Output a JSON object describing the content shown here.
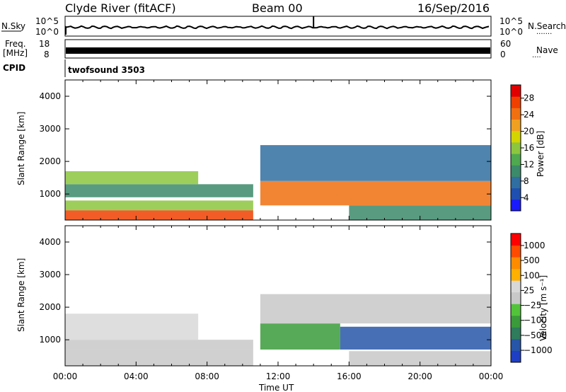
{
  "header": {
    "station": "Clyde River (fitACF)",
    "beam": "Beam 00",
    "date": "16/Sep/2016"
  },
  "panels": {
    "nsky_label": "N.Sky",
    "nsearch_label": "N.Search",
    "nsearch_dots": "·······",
    "freq_label_1": "Freq.",
    "freq_label_2": "[MHz]",
    "nave_label": "Nave",
    "nave_dots": "····",
    "cpid_label": "CPID",
    "cpid_value": "twofsound 3503",
    "nsky_ticks": [
      "10^5",
      "10^0"
    ],
    "nsearch_ticks": [
      "10^5",
      "10^0"
    ],
    "freq_ticks": [
      "18",
      "8"
    ],
    "nave_ticks": [
      "60",
      "0"
    ]
  },
  "colorbars": {
    "power": {
      "label": "Power [dB]",
      "ticks": [
        "28",
        "24",
        "20",
        "16",
        "12",
        "8",
        "4"
      ],
      "colors": [
        "#1a1aff",
        "#1f4fb0",
        "#2f6ea0",
        "#3b8a6a",
        "#4fa94f",
        "#8cc63f",
        "#d4d400",
        "#f0a020",
        "#f07010",
        "#f04000",
        "#e00000"
      ]
    },
    "velocity": {
      "label": "Velocity [m s⁻¹]",
      "ticks": [
        "1000",
        "500",
        "100",
        "25",
        "−25",
        "−100",
        "−500",
        "−1000"
      ],
      "colors": [
        "#ff0000",
        "#ff4a00",
        "#ff8c00",
        "#ffb000",
        "#d8d8d8",
        "#c8c8c8",
        "#52c43a",
        "#3a9b3a",
        "#2e7c5c",
        "#2756a8",
        "#1e3fc4"
      ]
    }
  },
  "chart_data": [
    {
      "type": "heatmap",
      "name": "power",
      "ylabel": "Slant Range [km]",
      "ylim": [
        200,
        4500
      ],
      "yticks": [
        1000,
        2000,
        3000,
        4000
      ],
      "xlim": [
        "00:00",
        "24:00"
      ],
      "xtick_labels": [
        "00:00",
        "04:00",
        "08:00",
        "12:00",
        "16:00",
        "20:00",
        "00:00"
      ],
      "color_scale": "Power [dB]",
      "zrange": [
        0,
        30
      ],
      "regions": [
        {
          "t0": 0.0,
          "t1": 10.6,
          "r0": 200,
          "r1": 500,
          "value": 26
        },
        {
          "t0": 0.0,
          "t1": 10.6,
          "r0": 500,
          "r1": 800,
          "value": 16
        },
        {
          "t0": 0.0,
          "t1": 10.6,
          "r0": 900,
          "r1": 1300,
          "value": 8
        },
        {
          "t0": 0.0,
          "t1": 7.5,
          "r0": 1300,
          "r1": 1700,
          "value": 14
        },
        {
          "t0": 11.0,
          "t1": 24.0,
          "r0": 650,
          "r1": 1400,
          "value": 24
        },
        {
          "t0": 11.0,
          "t1": 24.0,
          "r0": 1400,
          "r1": 2500,
          "value": 6
        },
        {
          "t0": 16.0,
          "t1": 24.0,
          "r0": 200,
          "r1": 650,
          "value": 10
        }
      ]
    },
    {
      "type": "heatmap",
      "name": "velocity",
      "xlabel": "Time UT",
      "ylabel": "Slant Range [km]",
      "ylim": [
        200,
        4500
      ],
      "yticks": [
        1000,
        2000,
        3000,
        4000
      ],
      "xlim": [
        "00:00",
        "24:00"
      ],
      "xtick_labels": [
        "00:00",
        "04:00",
        "08:00",
        "12:00",
        "16:00",
        "20:00",
        "00:00"
      ],
      "color_scale": "Velocity [m s⁻¹]",
      "zrange": [
        -1000,
        1000
      ],
      "regions": [
        {
          "t0": 0.0,
          "t1": 10.6,
          "r0": 200,
          "r1": 700,
          "value": 60
        },
        {
          "t0": 0.0,
          "t1": 10.6,
          "r0": 700,
          "r1": 1000,
          "value": 0
        },
        {
          "t0": 0.0,
          "t1": 7.5,
          "r0": 1000,
          "r1": 1800,
          "value": -150
        },
        {
          "t0": 11.0,
          "t1": 15.5,
          "r0": 700,
          "r1": 1500,
          "value": 300
        },
        {
          "t0": 15.5,
          "t1": 24.0,
          "r0": 700,
          "r1": 1400,
          "value": 800
        },
        {
          "t0": 11.0,
          "t1": 24.0,
          "r0": 1500,
          "r1": 2400,
          "value": 0
        },
        {
          "t0": 16.0,
          "t1": 24.0,
          "r0": 200,
          "r1": 650,
          "value": 20
        }
      ]
    }
  ]
}
